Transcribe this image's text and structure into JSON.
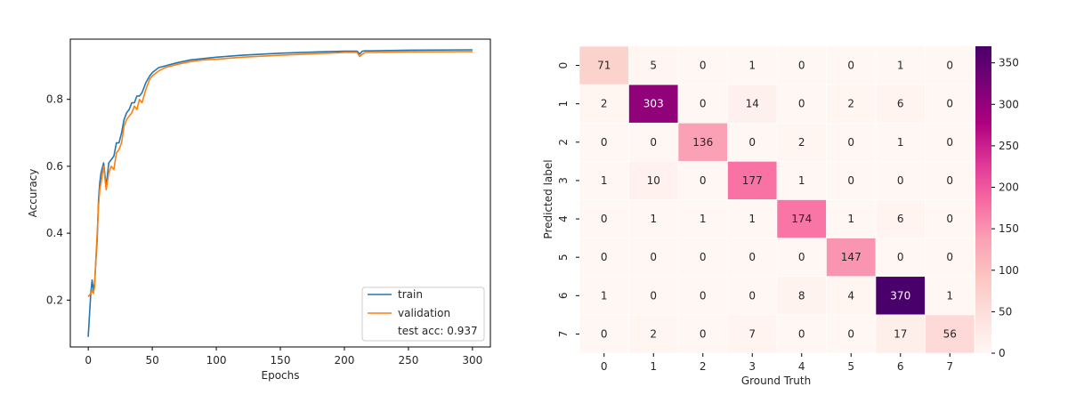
{
  "chart_data": [
    {
      "type": "line",
      "xlabel": "Epochs",
      "ylabel": "Accuracy",
      "xlim": [
        -14,
        314
      ],
      "ylim": [
        0.06,
        0.98
      ],
      "xticks": [
        "0",
        "50",
        "100",
        "150",
        "200",
        "250",
        "300"
      ],
      "yticks": [
        "0.2",
        "0.4",
        "0.6",
        "0.8"
      ],
      "legend": {
        "placement": "lower-right",
        "entries": [
          "train",
          "validation"
        ],
        "note": "test acc: 0.937"
      },
      "series": [
        {
          "name": "train",
          "color": "#1f77b4",
          "x": [
            0,
            2,
            3,
            4,
            5,
            6,
            7,
            8,
            9,
            10,
            12,
            14,
            16,
            18,
            20,
            22,
            24,
            26,
            28,
            30,
            32,
            34,
            36,
            38,
            40,
            42,
            45,
            48,
            50,
            55,
            60,
            65,
            70,
            80,
            90,
            100,
            120,
            150,
            180,
            200,
            210,
            212,
            214,
            216,
            220,
            250,
            300
          ],
          "y": [
            0.09,
            0.22,
            0.26,
            0.23,
            0.25,
            0.32,
            0.38,
            0.5,
            0.55,
            0.58,
            0.61,
            0.54,
            0.61,
            0.62,
            0.63,
            0.67,
            0.67,
            0.7,
            0.74,
            0.76,
            0.77,
            0.79,
            0.79,
            0.81,
            0.81,
            0.82,
            0.85,
            0.87,
            0.88,
            0.895,
            0.9,
            0.905,
            0.91,
            0.918,
            0.922,
            0.926,
            0.932,
            0.938,
            0.942,
            0.944,
            0.944,
            0.935,
            0.944,
            0.945,
            0.945,
            0.947,
            0.948
          ]
        },
        {
          "name": "validation",
          "color": "#ff7f0e",
          "x": [
            0,
            2,
            3,
            4,
            5,
            6,
            7,
            8,
            9,
            10,
            12,
            14,
            16,
            18,
            20,
            22,
            24,
            26,
            28,
            30,
            32,
            34,
            36,
            38,
            40,
            42,
            45,
            48,
            50,
            55,
            60,
            65,
            70,
            80,
            90,
            100,
            120,
            150,
            180,
            200,
            210,
            212,
            214,
            216,
            220,
            250,
            300
          ],
          "y": [
            0.21,
            0.22,
            0.23,
            0.22,
            0.24,
            0.33,
            0.4,
            0.48,
            0.53,
            0.55,
            0.6,
            0.53,
            0.58,
            0.6,
            0.59,
            0.64,
            0.65,
            0.67,
            0.72,
            0.74,
            0.75,
            0.76,
            0.78,
            0.77,
            0.8,
            0.79,
            0.83,
            0.86,
            0.87,
            0.885,
            0.895,
            0.9,
            0.905,
            0.913,
            0.918,
            0.92,
            0.926,
            0.932,
            0.937,
            0.94,
            0.94,
            0.928,
            0.935,
            0.94,
            0.94,
            0.942,
            0.943
          ]
        }
      ]
    },
    {
      "type": "heatmap",
      "xlabel": "Ground Truth",
      "ylabel": "Predicted label",
      "x_categories": [
        "0",
        "1",
        "2",
        "3",
        "4",
        "5",
        "6",
        "7"
      ],
      "y_categories": [
        "0",
        "1",
        "2",
        "3",
        "4",
        "5",
        "6",
        "7"
      ],
      "matrix": [
        [
          71,
          5,
          0,
          1,
          0,
          0,
          1,
          0
        ],
        [
          2,
          303,
          0,
          14,
          0,
          2,
          6,
          0
        ],
        [
          0,
          0,
          136,
          0,
          2,
          0,
          1,
          0
        ],
        [
          1,
          10,
          0,
          177,
          1,
          0,
          0,
          0
        ],
        [
          0,
          1,
          1,
          1,
          174,
          1,
          6,
          0
        ],
        [
          0,
          0,
          0,
          0,
          0,
          147,
          0,
          0
        ],
        [
          1,
          0,
          0,
          0,
          8,
          4,
          370,
          1
        ],
        [
          0,
          2,
          0,
          7,
          0,
          0,
          17,
          56
        ]
      ],
      "colorbar": {
        "min": 0,
        "max": 370,
        "ticks": [
          "0",
          "50",
          "100",
          "150",
          "200",
          "250",
          "300",
          "350"
        ]
      },
      "colormap": [
        "#fff7f3",
        "#fde0dd",
        "#fcc5c0",
        "#fa9fb5",
        "#f768a1",
        "#dd3497",
        "#ae017e",
        "#7a0177",
        "#49006a"
      ]
    }
  ]
}
